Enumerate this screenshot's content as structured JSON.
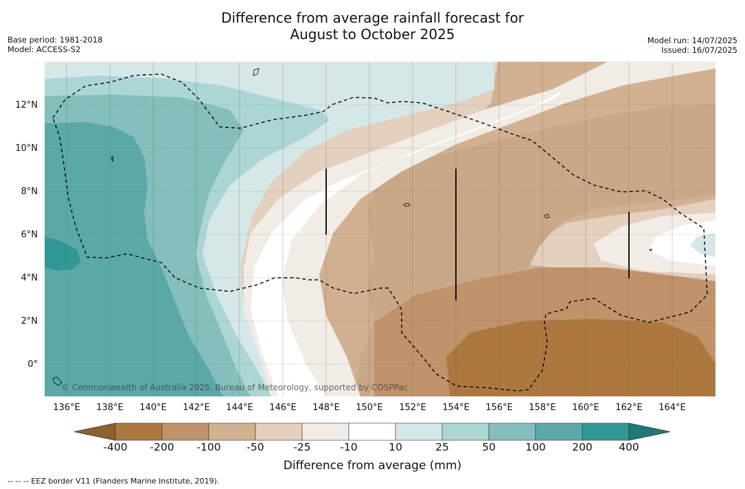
{
  "title_line1": "Difference from average rainfall forecast for",
  "title_line2": "August to October 2025",
  "meta_left": {
    "base_period": "Base period: 1981-2018",
    "model": "Model: ACCESS-S2"
  },
  "meta_right": {
    "model_run": "Model run: 14/07/2025",
    "issued": "Issued: 16/07/2025"
  },
  "map": {
    "lat_labels": [
      "12°N",
      "10°N",
      "8°N",
      "6°N",
      "4°N",
      "2°N",
      "0°"
    ],
    "lon_labels": [
      "136°E",
      "138°E",
      "140°E",
      "142°E",
      "144°E",
      "146°E",
      "148°E",
      "150°E",
      "152°E",
      "154°E",
      "156°E",
      "158°E",
      "160°E",
      "162°E",
      "164°E"
    ],
    "copyright": "© Commonwealth of Australia 2025, Bureau of Meteorology, supported by COSPPac"
  },
  "legend": {
    "title": "Difference from average (mm)",
    "ticks": [
      "-400",
      "-200",
      "-100",
      "-50",
      "-25",
      "-10",
      "10",
      "25",
      "50",
      "100",
      "200",
      "400"
    ],
    "colors": [
      "#8f5f30",
      "#ad7840",
      "#c0936a",
      "#d2b192",
      "#e4d0bf",
      "#f2ece6",
      "#ffffff",
      "#d5e8e7",
      "#acd6d4",
      "#84bfbd",
      "#5aa9a8",
      "#319995",
      "#1f7a76"
    ]
  },
  "footnote": "--  --  -- EEZ border V11 (Flanders Marine Institute, 2019)."
}
